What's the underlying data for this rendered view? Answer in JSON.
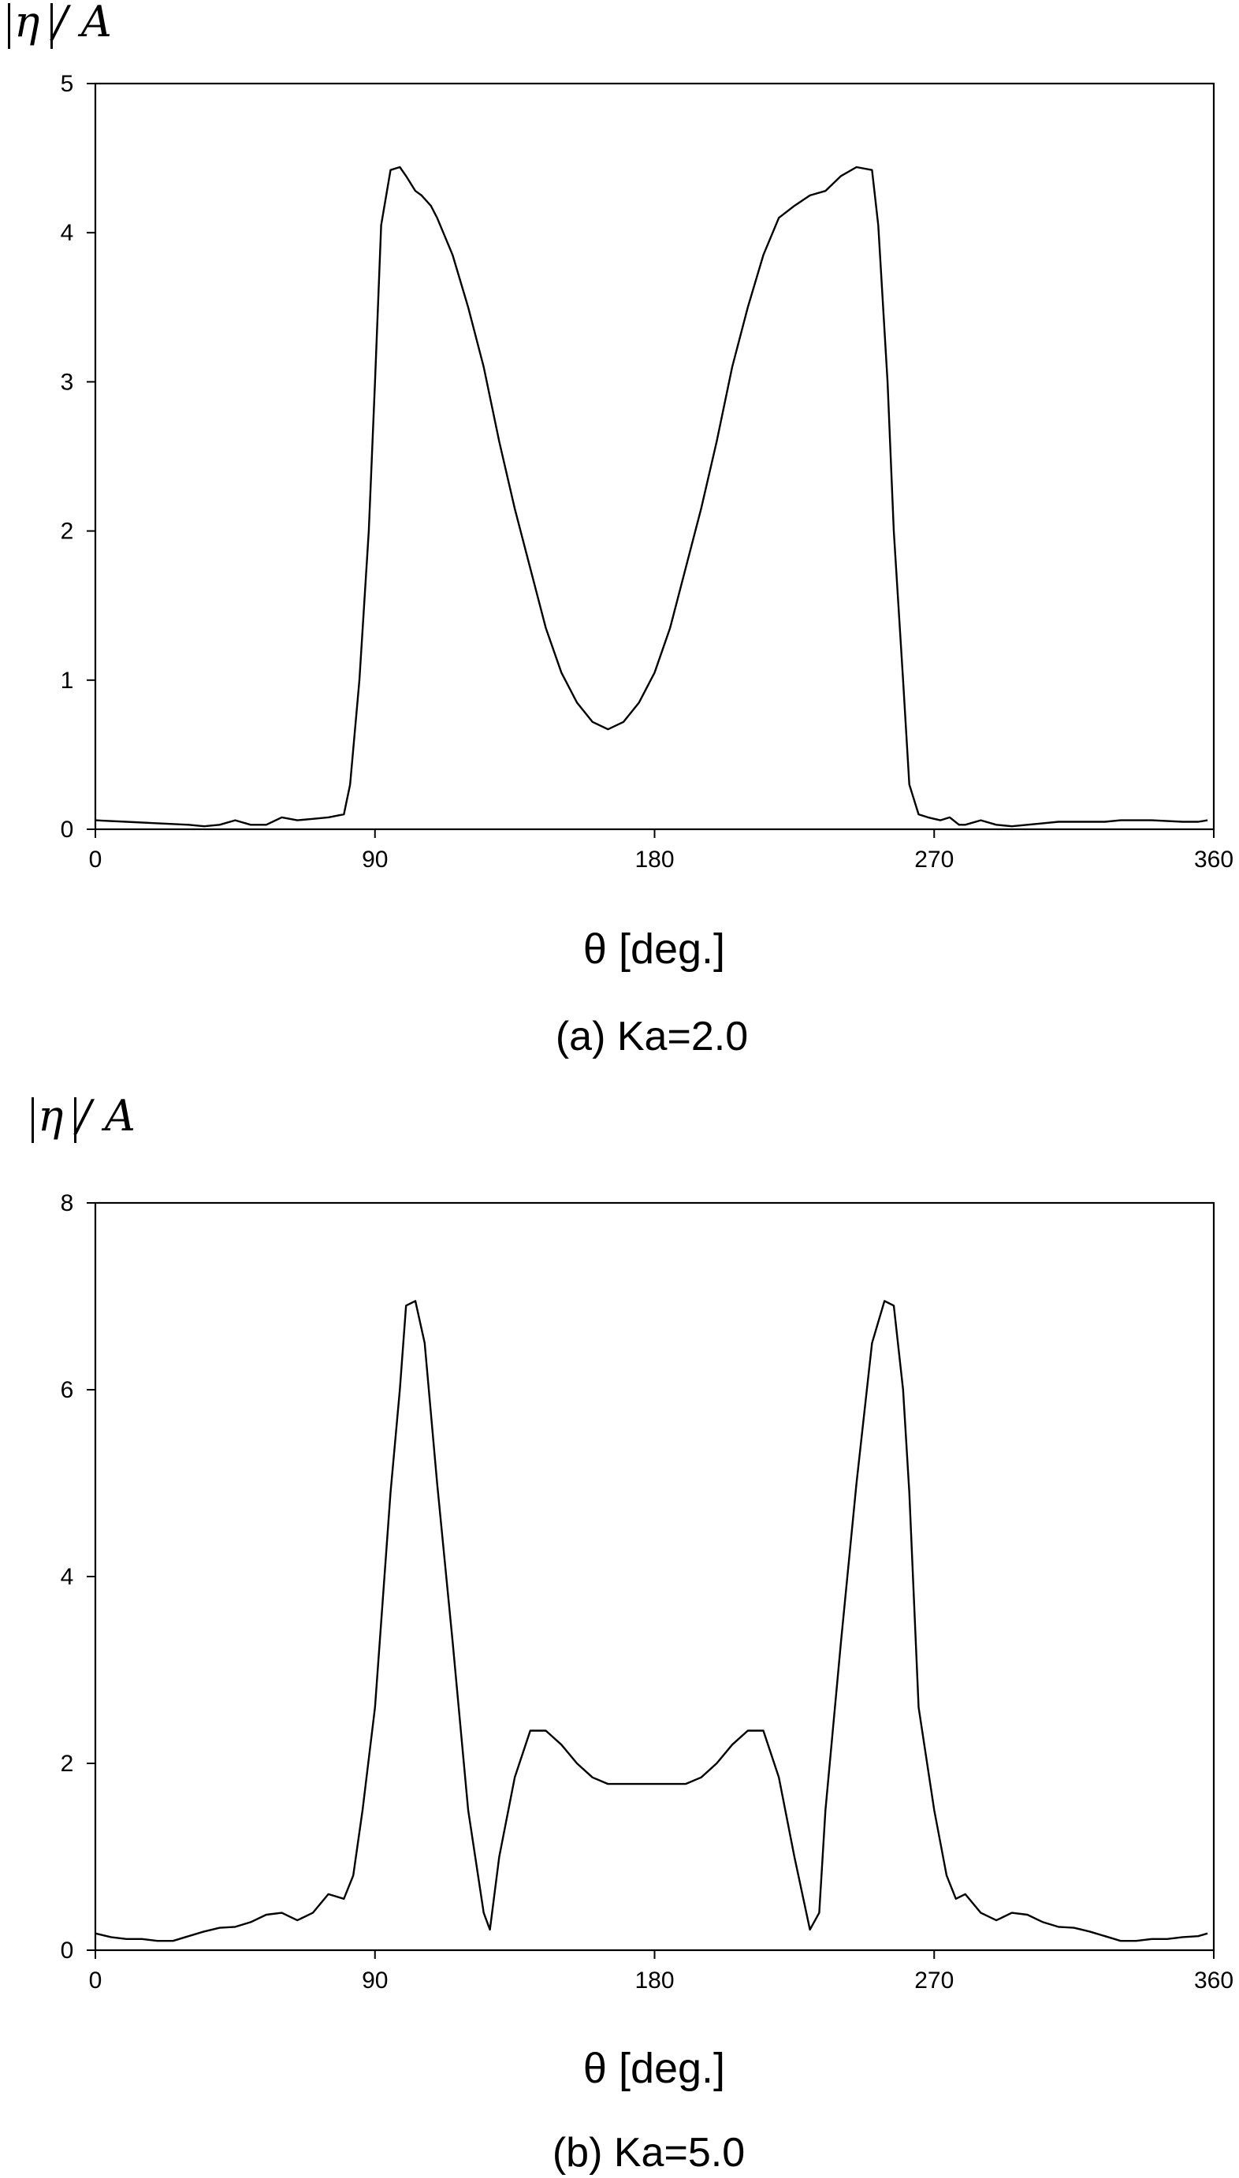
{
  "chart_data": [
    {
      "type": "line",
      "ylabel": "η / A",
      "xlabel": "θ [deg.]",
      "caption": "(a) Ka=2.0",
      "xlim": [
        0,
        360
      ],
      "ylim": [
        0,
        5
      ],
      "xticks": [
        0,
        90,
        180,
        270,
        360
      ],
      "yticks": [
        0,
        1,
        2,
        3,
        4,
        5
      ],
      "grid": false,
      "series": [
        {
          "x": [
            0,
            10,
            20,
            30,
            35,
            40,
            45,
            50,
            55,
            60,
            65,
            70,
            75,
            80,
            82,
            85,
            88,
            90,
            92,
            95,
            98,
            100,
            103,
            105,
            108,
            110,
            115,
            120,
            125,
            130,
            135,
            140,
            145,
            150,
            155,
            160,
            165,
            170,
            175,
            180,
            185,
            190,
            195,
            200,
            205,
            210,
            215,
            220,
            225,
            230,
            235,
            240,
            245,
            250,
            252,
            255,
            257,
            260,
            262,
            265,
            268,
            270,
            272,
            275,
            278,
            280,
            285,
            290,
            295,
            300,
            305,
            310,
            315,
            320,
            325,
            330,
            340,
            350,
            355,
            358
          ],
          "y": [
            0.06,
            0.05,
            0.04,
            0.03,
            0.02,
            0.03,
            0.06,
            0.03,
            0.03,
            0.08,
            0.06,
            0.07,
            0.08,
            0.1,
            0.3,
            1.0,
            2.0,
            3.0,
            4.05,
            4.42,
            4.44,
            4.38,
            4.28,
            4.25,
            4.18,
            4.1,
            3.85,
            3.5,
            3.1,
            2.6,
            2.15,
            1.75,
            1.35,
            1.05,
            0.85,
            0.72,
            0.67,
            0.72,
            0.85,
            1.05,
            1.35,
            1.75,
            2.15,
            2.6,
            3.1,
            3.5,
            3.85,
            4.1,
            4.18,
            4.25,
            4.28,
            4.38,
            4.44,
            4.42,
            4.05,
            3.0,
            2.0,
            1.0,
            0.3,
            0.1,
            0.08,
            0.07,
            0.06,
            0.08,
            0.03,
            0.03,
            0.06,
            0.03,
            0.02,
            0.03,
            0.04,
            0.05,
            0.05,
            0.05,
            0.05,
            0.06,
            0.06,
            0.05,
            0.05,
            0.06
          ]
        }
      ]
    },
    {
      "type": "line",
      "ylabel": "η / A",
      "xlabel": "θ [deg.]",
      "caption": "(b) Ka=5.0",
      "xlim": [
        0,
        360
      ],
      "ylim": [
        0,
        8
      ],
      "xticks": [
        0,
        90,
        180,
        270,
        360
      ],
      "yticks": [
        0,
        2,
        4,
        6,
        8
      ],
      "grid": false,
      "series": [
        {
          "x": [
            0,
            5,
            10,
            15,
            20,
            25,
            30,
            35,
            40,
            45,
            50,
            55,
            60,
            65,
            70,
            75,
            80,
            83,
            86,
            90,
            95,
            98,
            100,
            103,
            106,
            110,
            115,
            120,
            125,
            127,
            130,
            135,
            140,
            145,
            150,
            155,
            160,
            165,
            170,
            175,
            180,
            185,
            190,
            195,
            200,
            205,
            210,
            215,
            220,
            225,
            230,
            233,
            235,
            240,
            245,
            250,
            254,
            257,
            260,
            262,
            265,
            270,
            274,
            277,
            280,
            285,
            290,
            295,
            300,
            305,
            310,
            315,
            320,
            325,
            330,
            335,
            340,
            345,
            350,
            355,
            358
          ],
          "y": [
            0.18,
            0.14,
            0.12,
            0.12,
            0.1,
            0.1,
            0.15,
            0.2,
            0.24,
            0.25,
            0.3,
            0.38,
            0.4,
            0.32,
            0.4,
            0.6,
            0.55,
            0.8,
            1.5,
            2.6,
            4.9,
            6.0,
            6.9,
            6.95,
            6.5,
            5.0,
            3.3,
            1.5,
            0.4,
            0.22,
            1.0,
            1.85,
            2.35,
            2.35,
            2.2,
            2.0,
            1.85,
            1.78,
            1.78,
            1.78,
            1.78,
            1.78,
            1.78,
            1.85,
            2.0,
            2.2,
            2.35,
            2.35,
            1.85,
            1.0,
            0.22,
            0.4,
            1.5,
            3.3,
            5.0,
            6.5,
            6.95,
            6.9,
            6.0,
            4.9,
            2.6,
            1.5,
            0.8,
            0.55,
            0.6,
            0.4,
            0.32,
            0.4,
            0.38,
            0.3,
            0.25,
            0.24,
            0.2,
            0.15,
            0.1,
            0.1,
            0.12,
            0.12,
            0.14,
            0.15,
            0.18
          ]
        }
      ]
    }
  ]
}
